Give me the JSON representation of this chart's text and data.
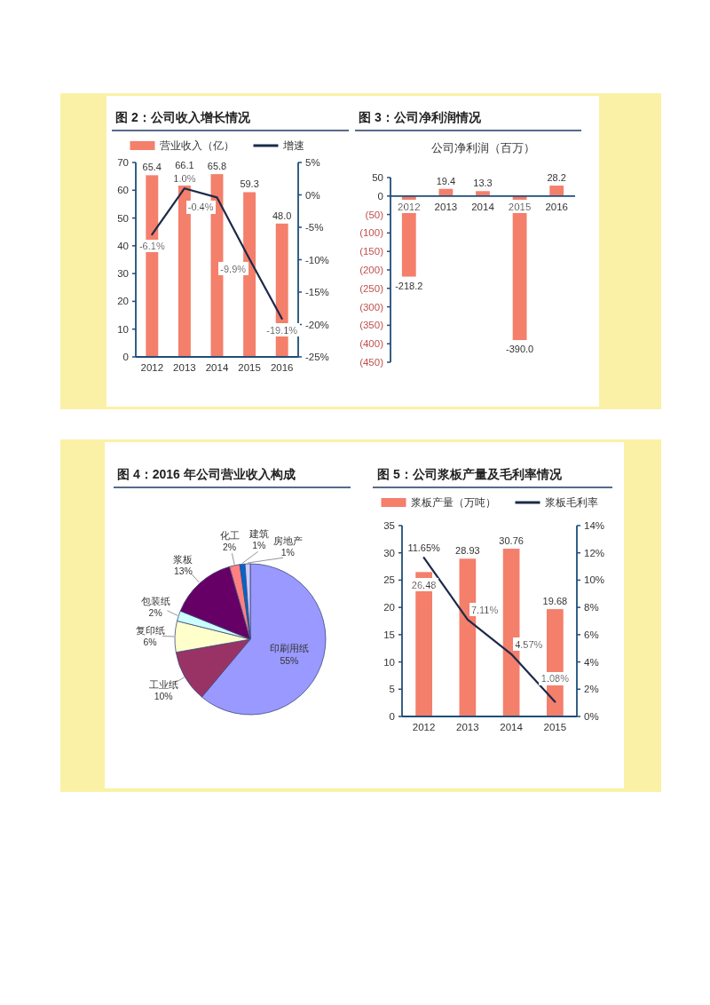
{
  "chart_data": [
    {
      "type": "bar",
      "title": "图 2：公司收入增长情况",
      "categories": [
        "2012",
        "2013",
        "2014",
        "2015",
        "2016"
      ],
      "series": [
        {
          "name": "营业收入（亿）",
          "type": "bar",
          "color": "#f47f6b",
          "values": [
            65.4,
            66.1,
            65.8,
            59.3,
            48.0
          ],
          "value_labels": [
            "65.4",
            "66.1",
            "65.8",
            "59.3",
            "48.0"
          ]
        },
        {
          "name": "增速",
          "type": "line",
          "axis": "y2",
          "color": "#1c2a48",
          "values": [
            -6.1,
            1.0,
            -0.4,
            -9.9,
            -19.1
          ],
          "value_labels": [
            "-6.1%",
            "1.0%",
            "-0.4%",
            "-9.9%",
            "-19.1%"
          ]
        }
      ],
      "ylim": [
        0,
        70
      ],
      "yticks": [
        0,
        10,
        20,
        30,
        40,
        50,
        60,
        70
      ],
      "y2lim": [
        -25,
        5
      ],
      "y2ticks": [
        {
          "value": -25,
          "label": "-25%"
        },
        {
          "value": -20,
          "label": "-20%"
        },
        {
          "value": -15,
          "label": "-15%"
        },
        {
          "value": -10,
          "label": "-10%"
        },
        {
          "value": -5,
          "label": "-5%"
        },
        {
          "value": 0,
          "label": "0%"
        },
        {
          "value": 5,
          "label": "5%"
        }
      ],
      "legend": "top"
    },
    {
      "type": "bar",
      "title": "图 3：公司净利润情况",
      "subtitle": "公司净利润（百万）",
      "categories": [
        "2012",
        "2013",
        "2014",
        "2015",
        "2016"
      ],
      "values": [
        -218.2,
        19.4,
        13.3,
        -390.0,
        28.2
      ],
      "color": "#f47f6b",
      "value_labels": [
        "-218.2",
        "19.4",
        "13.3",
        "-390.0",
        "28.2"
      ],
      "ylim": [
        -450,
        50
      ],
      "yticks": [
        50,
        0,
        {
          "value": -50,
          "label": "(50)"
        },
        {
          "value": -100,
          "label": "(100)"
        },
        {
          "value": -150,
          "label": "(150)"
        },
        {
          "value": -200,
          "label": "(200)"
        },
        {
          "value": -250,
          "label": "(250)"
        },
        {
          "value": -300,
          "label": "(300)"
        },
        {
          "value": -350,
          "label": "(350)"
        },
        {
          "value": -400,
          "label": "(400)"
        },
        {
          "value": -450,
          "label": "(450)"
        }
      ]
    },
    {
      "type": "pie",
      "title": "图 4：2016 年公司营业收入构成",
      "categories": [
        "印刷用纸",
        "工业纸",
        "复印纸",
        "包装纸",
        "浆板",
        "化工",
        "建筑",
        "房地产"
      ],
      "values": [
        55,
        10,
        6,
        2,
        13,
        2,
        1,
        1
      ],
      "value_labels": [
        "55%",
        "10%",
        "6%",
        "2%",
        "13%",
        "2%",
        "1%",
        "1%"
      ],
      "colors": [
        "#9999ff",
        "#993366",
        "#ffffcc",
        "#ccffff",
        "#660066",
        "#ff8080",
        "#0066cc",
        "#ccccff"
      ]
    },
    {
      "type": "bar",
      "title": "图 5：公司浆板产量及毛利率情况",
      "categories": [
        "2012",
        "2013",
        "2014",
        "2015"
      ],
      "series": [
        {
          "name": "浆板产量（万吨）",
          "type": "bar",
          "color": "#f47f6b",
          "values": [
            26.48,
            28.93,
            30.76,
            19.68
          ],
          "value_labels": [
            "26.48",
            "28.93",
            "30.76",
            "19.68"
          ]
        },
        {
          "name": "浆板毛利率",
          "type": "line",
          "axis": "y2",
          "color": "#1c2a48",
          "values": [
            11.65,
            7.11,
            4.57,
            1.08
          ],
          "value_labels": [
            "11.65%",
            "7.11%",
            "4.57%",
            "1.08%"
          ]
        }
      ],
      "ylim": [
        0,
        35
      ],
      "yticks": [
        0,
        5,
        10,
        15,
        20,
        25,
        30,
        35
      ],
      "y2lim": [
        0,
        14
      ],
      "y2ticks": [
        {
          "value": 0,
          "label": "0%"
        },
        {
          "value": 2,
          "label": "2%"
        },
        {
          "value": 4,
          "label": "4%"
        },
        {
          "value": 6,
          "label": "6%"
        },
        {
          "value": 8,
          "label": "8%"
        },
        {
          "value": 10,
          "label": "10%"
        },
        {
          "value": 12,
          "label": "12%"
        },
        {
          "value": 14,
          "label": "14%"
        }
      ],
      "legend": "top"
    }
  ]
}
